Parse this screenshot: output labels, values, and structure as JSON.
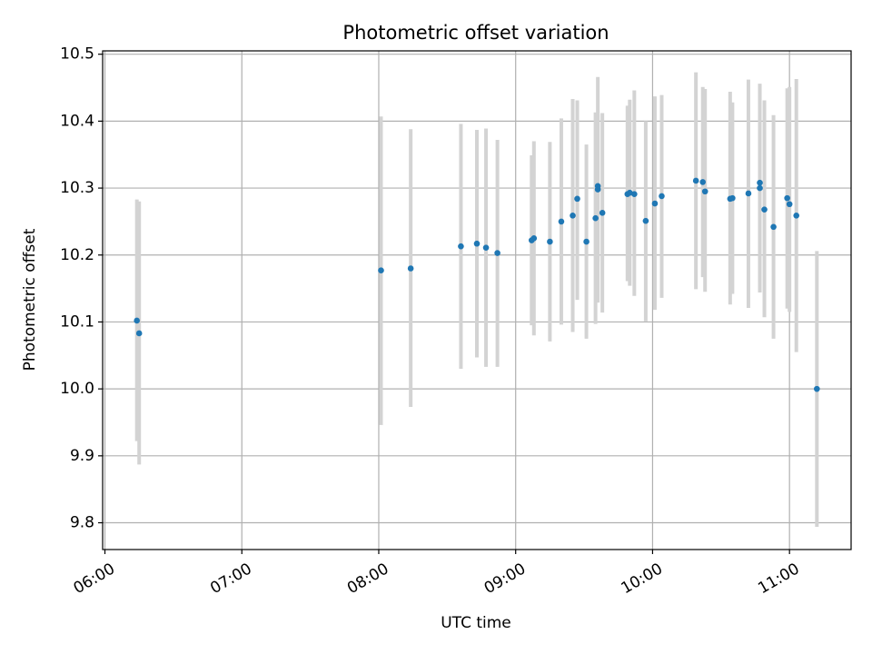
{
  "chart_data": {
    "type": "scatter",
    "title": "Photometric offset variation",
    "xlabel": "UTC time",
    "ylabel": "Photometric offset",
    "xlim": [
      "05:59",
      "11:27"
    ],
    "ylim": [
      9.76,
      10.505
    ],
    "xticks": [
      "06:00",
      "07:00",
      "08:00",
      "09:00",
      "10:00",
      "11:00"
    ],
    "yticks": [
      "9.8",
      "9.9",
      "10.0",
      "10.1",
      "10.2",
      "10.3",
      "10.4",
      "10.5"
    ],
    "grid": true,
    "point_color": "#1f77b4",
    "errorbar_color": "#d3d3d3",
    "points": [
      {
        "t": "06:14",
        "y": 10.102,
        "lo": 9.922,
        "hi": 10.283
      },
      {
        "t": "06:15",
        "y": 10.083,
        "lo": 9.887,
        "hi": 10.28
      },
      {
        "t": "08:01",
        "y": 10.177,
        "lo": 9.946,
        "hi": 10.407
      },
      {
        "t": "08:14",
        "y": 10.18,
        "lo": 9.973,
        "hi": 10.388
      },
      {
        "t": "08:36",
        "y": 10.213,
        "lo": 10.03,
        "hi": 10.396
      },
      {
        "t": "08:43",
        "y": 10.217,
        "lo": 10.047,
        "hi": 10.387
      },
      {
        "t": "08:47",
        "y": 10.211,
        "lo": 10.033,
        "hi": 10.389
      },
      {
        "t": "08:52",
        "y": 10.203,
        "lo": 10.033,
        "hi": 10.372
      },
      {
        "t": "09:07",
        "y": 10.222,
        "lo": 10.095,
        "hi": 10.349
      },
      {
        "t": "09:08",
        "y": 10.225,
        "lo": 10.08,
        "hi": 10.37
      },
      {
        "t": "09:15",
        "y": 10.22,
        "lo": 10.071,
        "hi": 10.369
      },
      {
        "t": "09:20",
        "y": 10.25,
        "lo": 10.096,
        "hi": 10.404
      },
      {
        "t": "09:25",
        "y": 10.259,
        "lo": 10.085,
        "hi": 10.433
      },
      {
        "t": "09:27",
        "y": 10.284,
        "lo": 10.133,
        "hi": 10.431
      },
      {
        "t": "09:31",
        "y": 10.22,
        "lo": 10.075,
        "hi": 10.365
      },
      {
        "t": "09:35",
        "y": 10.255,
        "lo": 10.097,
        "hi": 10.413
      },
      {
        "t": "09:36",
        "y": 10.298,
        "lo": 10.129,
        "hi": 10.466
      },
      {
        "t": "09:36",
        "y": 10.303,
        "lo": 10.19,
        "hi": 10.41
      },
      {
        "t": "09:38",
        "y": 10.263,
        "lo": 10.114,
        "hi": 10.412
      },
      {
        "t": "09:49",
        "y": 10.291,
        "lo": 10.161,
        "hi": 10.423
      },
      {
        "t": "09:50",
        "y": 10.293,
        "lo": 10.154,
        "hi": 10.432
      },
      {
        "t": "09:52",
        "y": 10.291,
        "lo": 10.139,
        "hi": 10.446
      },
      {
        "t": "09:57",
        "y": 10.251,
        "lo": 10.101,
        "hi": 10.4
      },
      {
        "t": "10:01",
        "y": 10.277,
        "lo": 10.118,
        "hi": 10.437
      },
      {
        "t": "10:04",
        "y": 10.288,
        "lo": 10.136,
        "hi": 10.439
      },
      {
        "t": "10:19",
        "y": 10.311,
        "lo": 10.149,
        "hi": 10.473
      },
      {
        "t": "10:22",
        "y": 10.309,
        "lo": 10.167,
        "hi": 10.451
      },
      {
        "t": "10:23",
        "y": 10.295,
        "lo": 10.145,
        "hi": 10.448
      },
      {
        "t": "10:34",
        "y": 10.284,
        "lo": 10.126,
        "hi": 10.444
      },
      {
        "t": "10:35",
        "y": 10.285,
        "lo": 10.142,
        "hi": 10.428
      },
      {
        "t": "10:42",
        "y": 10.292,
        "lo": 10.121,
        "hi": 10.462
      },
      {
        "t": "10:47",
        "y": 10.3,
        "lo": 10.144,
        "hi": 10.456
      },
      {
        "t": "10:47",
        "y": 10.308,
        "lo": 10.161,
        "hi": 10.454
      },
      {
        "t": "10:49",
        "y": 10.268,
        "lo": 10.107,
        "hi": 10.431
      },
      {
        "t": "10:53",
        "y": 10.242,
        "lo": 10.075,
        "hi": 10.409
      },
      {
        "t": "10:59",
        "y": 10.285,
        "lo": 10.12,
        "hi": 10.449
      },
      {
        "t": "11:00",
        "y": 10.276,
        "lo": 10.115,
        "hi": 10.451
      },
      {
        "t": "11:03",
        "y": 10.259,
        "lo": 10.055,
        "hi": 10.463
      },
      {
        "t": "11:12",
        "y": 10.0,
        "lo": 9.794,
        "hi": 10.206
      }
    ]
  }
}
